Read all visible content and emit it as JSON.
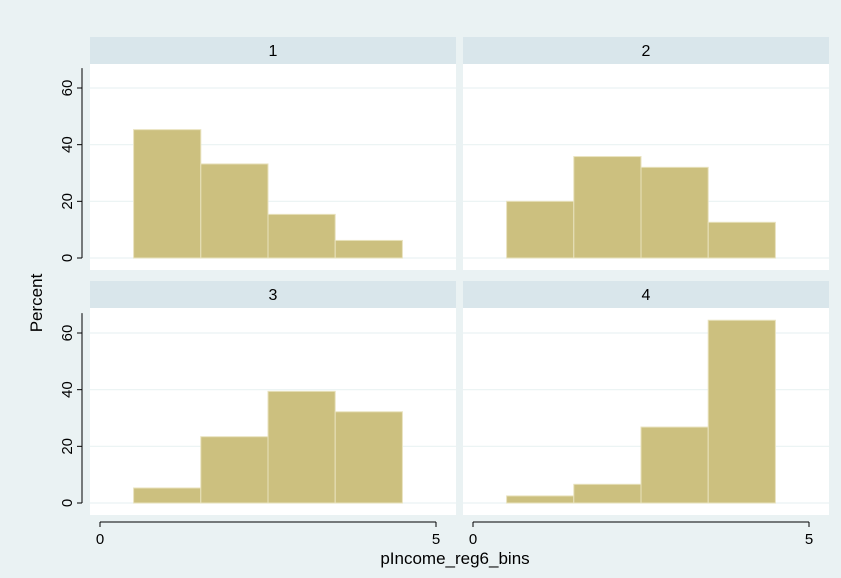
{
  "colors": {
    "background": "#eaf2f3",
    "plot_bg": "#ffffff",
    "strip_bg": "#d9e6eb",
    "bar_fill": "#ccc07f",
    "bar_edge": "#e8e2bd",
    "grid": "#eaf2f3"
  },
  "chart_data": {
    "type": "bar",
    "chart_kind": "histogram",
    "xlabel": "pIncome_reg6_bins",
    "ylabel": "Percent",
    "xlim": [
      0,
      5
    ],
    "ylim": [
      0,
      67
    ],
    "x_ticks": [
      0,
      5
    ],
    "y_ticks": [
      0,
      20,
      40,
      60
    ],
    "grid": true,
    "bins": [
      [
        0.5,
        1.5
      ],
      [
        1.5,
        2.5
      ],
      [
        2.5,
        3.5
      ],
      [
        3.5,
        4.5
      ]
    ],
    "panels": [
      {
        "label": "1",
        "values": [
          45.3,
          33.2,
          15.4,
          6.2
        ]
      },
      {
        "label": "2",
        "values": [
          20.0,
          35.8,
          32.0,
          12.6
        ]
      },
      {
        "label": "3",
        "values": [
          5.3,
          23.4,
          39.4,
          32.2
        ]
      },
      {
        "label": "4",
        "values": [
          2.5,
          6.6,
          26.8,
          64.5
        ]
      }
    ]
  }
}
